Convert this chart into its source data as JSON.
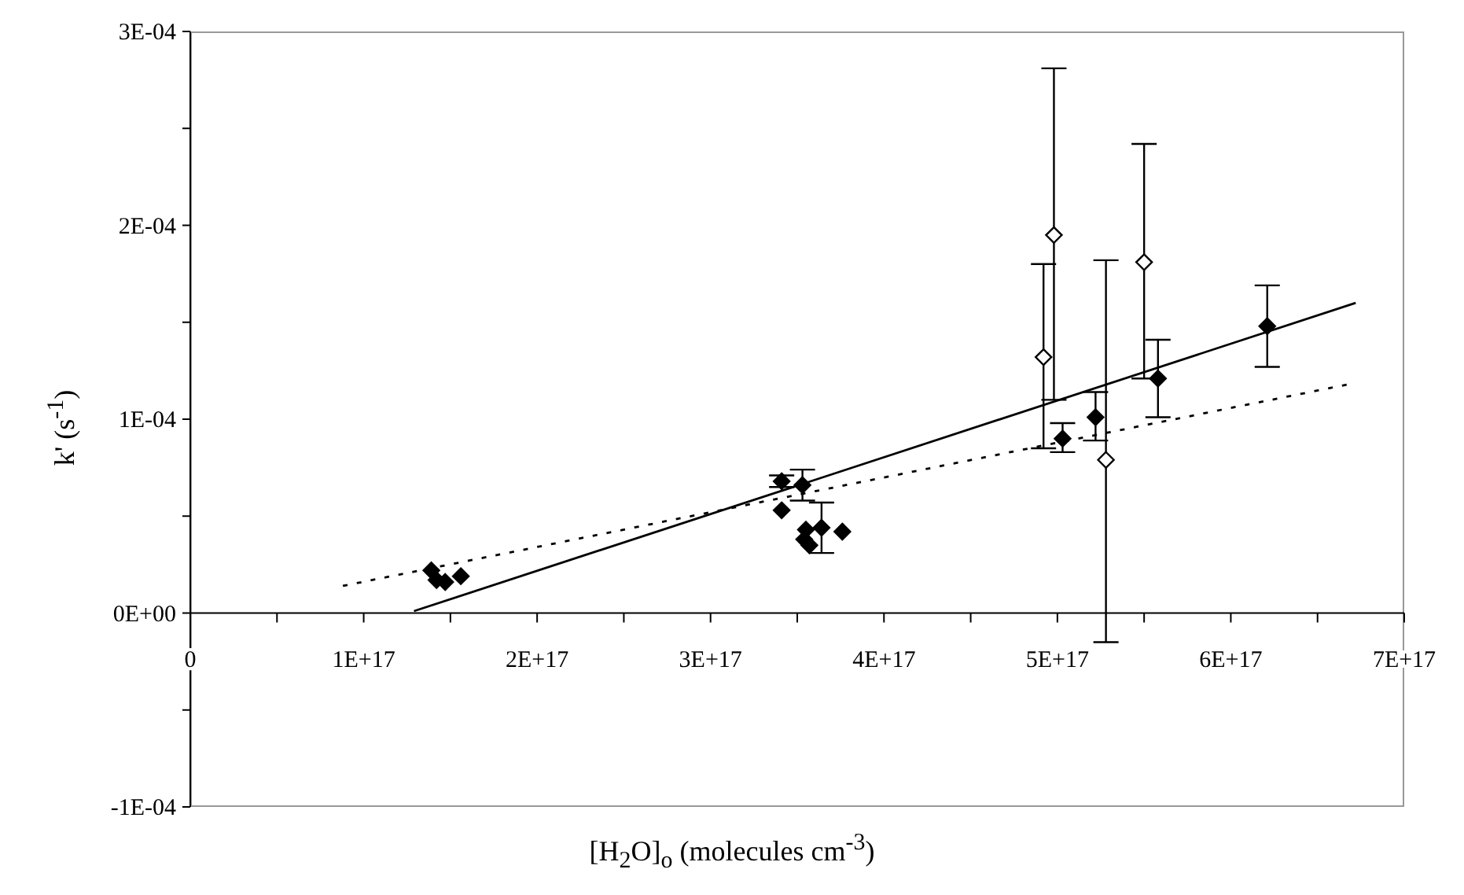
{
  "chart_data": {
    "type": "scatter",
    "xlabel": "[H$_{2}$O]$_{o}$ (molecules cm$^{-3}$)",
    "ylabel": "k' (s$^{-1}$)",
    "xlim": [
      0,
      7e+17
    ],
    "ylim": [
      -0.0001,
      0.0003
    ],
    "xticks": [
      {
        "value": 0,
        "label": "0"
      },
      {
        "value": 5e+16,
        "label": null
      },
      {
        "value": 1e+17,
        "label": "1E+17"
      },
      {
        "value": 1.5e+17,
        "label": null
      },
      {
        "value": 2e+17,
        "label": "2E+17"
      },
      {
        "value": 2.5e+17,
        "label": null
      },
      {
        "value": 3e+17,
        "label": "3E+17"
      },
      {
        "value": 3.5e+17,
        "label": null
      },
      {
        "value": 4e+17,
        "label": "4E+17"
      },
      {
        "value": 4.5e+17,
        "label": null
      },
      {
        "value": 5e+17,
        "label": "5E+17"
      },
      {
        "value": 5.5e+17,
        "label": null
      },
      {
        "value": 6e+17,
        "label": "6E+17"
      },
      {
        "value": 6.5e+17,
        "label": null
      },
      {
        "value": 7e+17,
        "label": "7E+17"
      }
    ],
    "yticks": [
      {
        "value": -0.0001,
        "label": "-1E-04"
      },
      {
        "value": -5e-05,
        "label": null
      },
      {
        "value": 0,
        "label": "0E+00"
      },
      {
        "value": 5e-05,
        "label": null
      },
      {
        "value": 0.0001,
        "label": "1E-04"
      },
      {
        "value": 0.00015,
        "label": null
      },
      {
        "value": 0.0002,
        "label": "2E-04"
      },
      {
        "value": 0.00025,
        "label": null
      },
      {
        "value": 0.0003,
        "label": "3E-04"
      }
    ],
    "grid": false,
    "series": [
      {
        "marker": "diamond",
        "color": "#000000",
        "x": [
          1.39e+17,
          1.42e+17,
          1.47e+17,
          1.56e+17,
          3.41e+17,
          3.41e+17,
          3.53e+17,
          3.55e+17,
          3.54e+17,
          3.57e+17,
          3.64e+17,
          3.76e+17,
          5.03e+17,
          5.22e+17,
          5.58e+17,
          6.21e+17
        ],
        "values": [
          2.2e-05,
          1.7e-05,
          1.6e-05,
          1.9e-05,
          6.8e-05,
          5.3e-05,
          6.6e-05,
          4.3e-05,
          3.8e-05,
          3.5e-05,
          4.4e-05,
          4.2e-05,
          9e-05,
          0.000101,
          0.000121,
          0.000148
        ],
        "errors": [
          null,
          null,
          null,
          null,
          3e-06,
          null,
          [
            5.8e-05,
            7.4e-05
          ],
          null,
          null,
          null,
          [
            3.1e-05,
            5.7e-05
          ],
          null,
          [
            8.3e-05,
            9.8e-05
          ],
          [
            8.9e-05,
            0.000114
          ],
          [
            0.000101,
            0.000141
          ],
          [
            0.000127,
            0.000169
          ]
        ]
      },
      {
        "marker": "diamond",
        "color": "#ffffff",
        "x": [
          4.92e+17,
          4.98e+17,
          5.28e+17,
          5.5e+17
        ],
        "values": [
          0.000132,
          0.000195,
          7.9e-05,
          0.000181
        ],
        "errors": [
          [
            8.5e-05,
            0.00018
          ],
          [
            0.00011,
            0.000281
          ],
          [
            -1.5e-05,
            0.000182
          ],
          [
            0.000121,
            0.000242
          ]
        ]
      },
      {
        "type": "line",
        "color": "#000000",
        "line_style": "solid",
        "x": [
          1.29e+17,
          6.72e+17
        ],
        "values": [
          1e-06,
          0.00016
        ]
      },
      {
        "type": "line",
        "color": "#000000",
        "line_style": "dotted",
        "x": [
          8.8e+16,
          6.68e+17
        ],
        "values": [
          1.4e-05,
          0.000118
        ]
      }
    ]
  }
}
